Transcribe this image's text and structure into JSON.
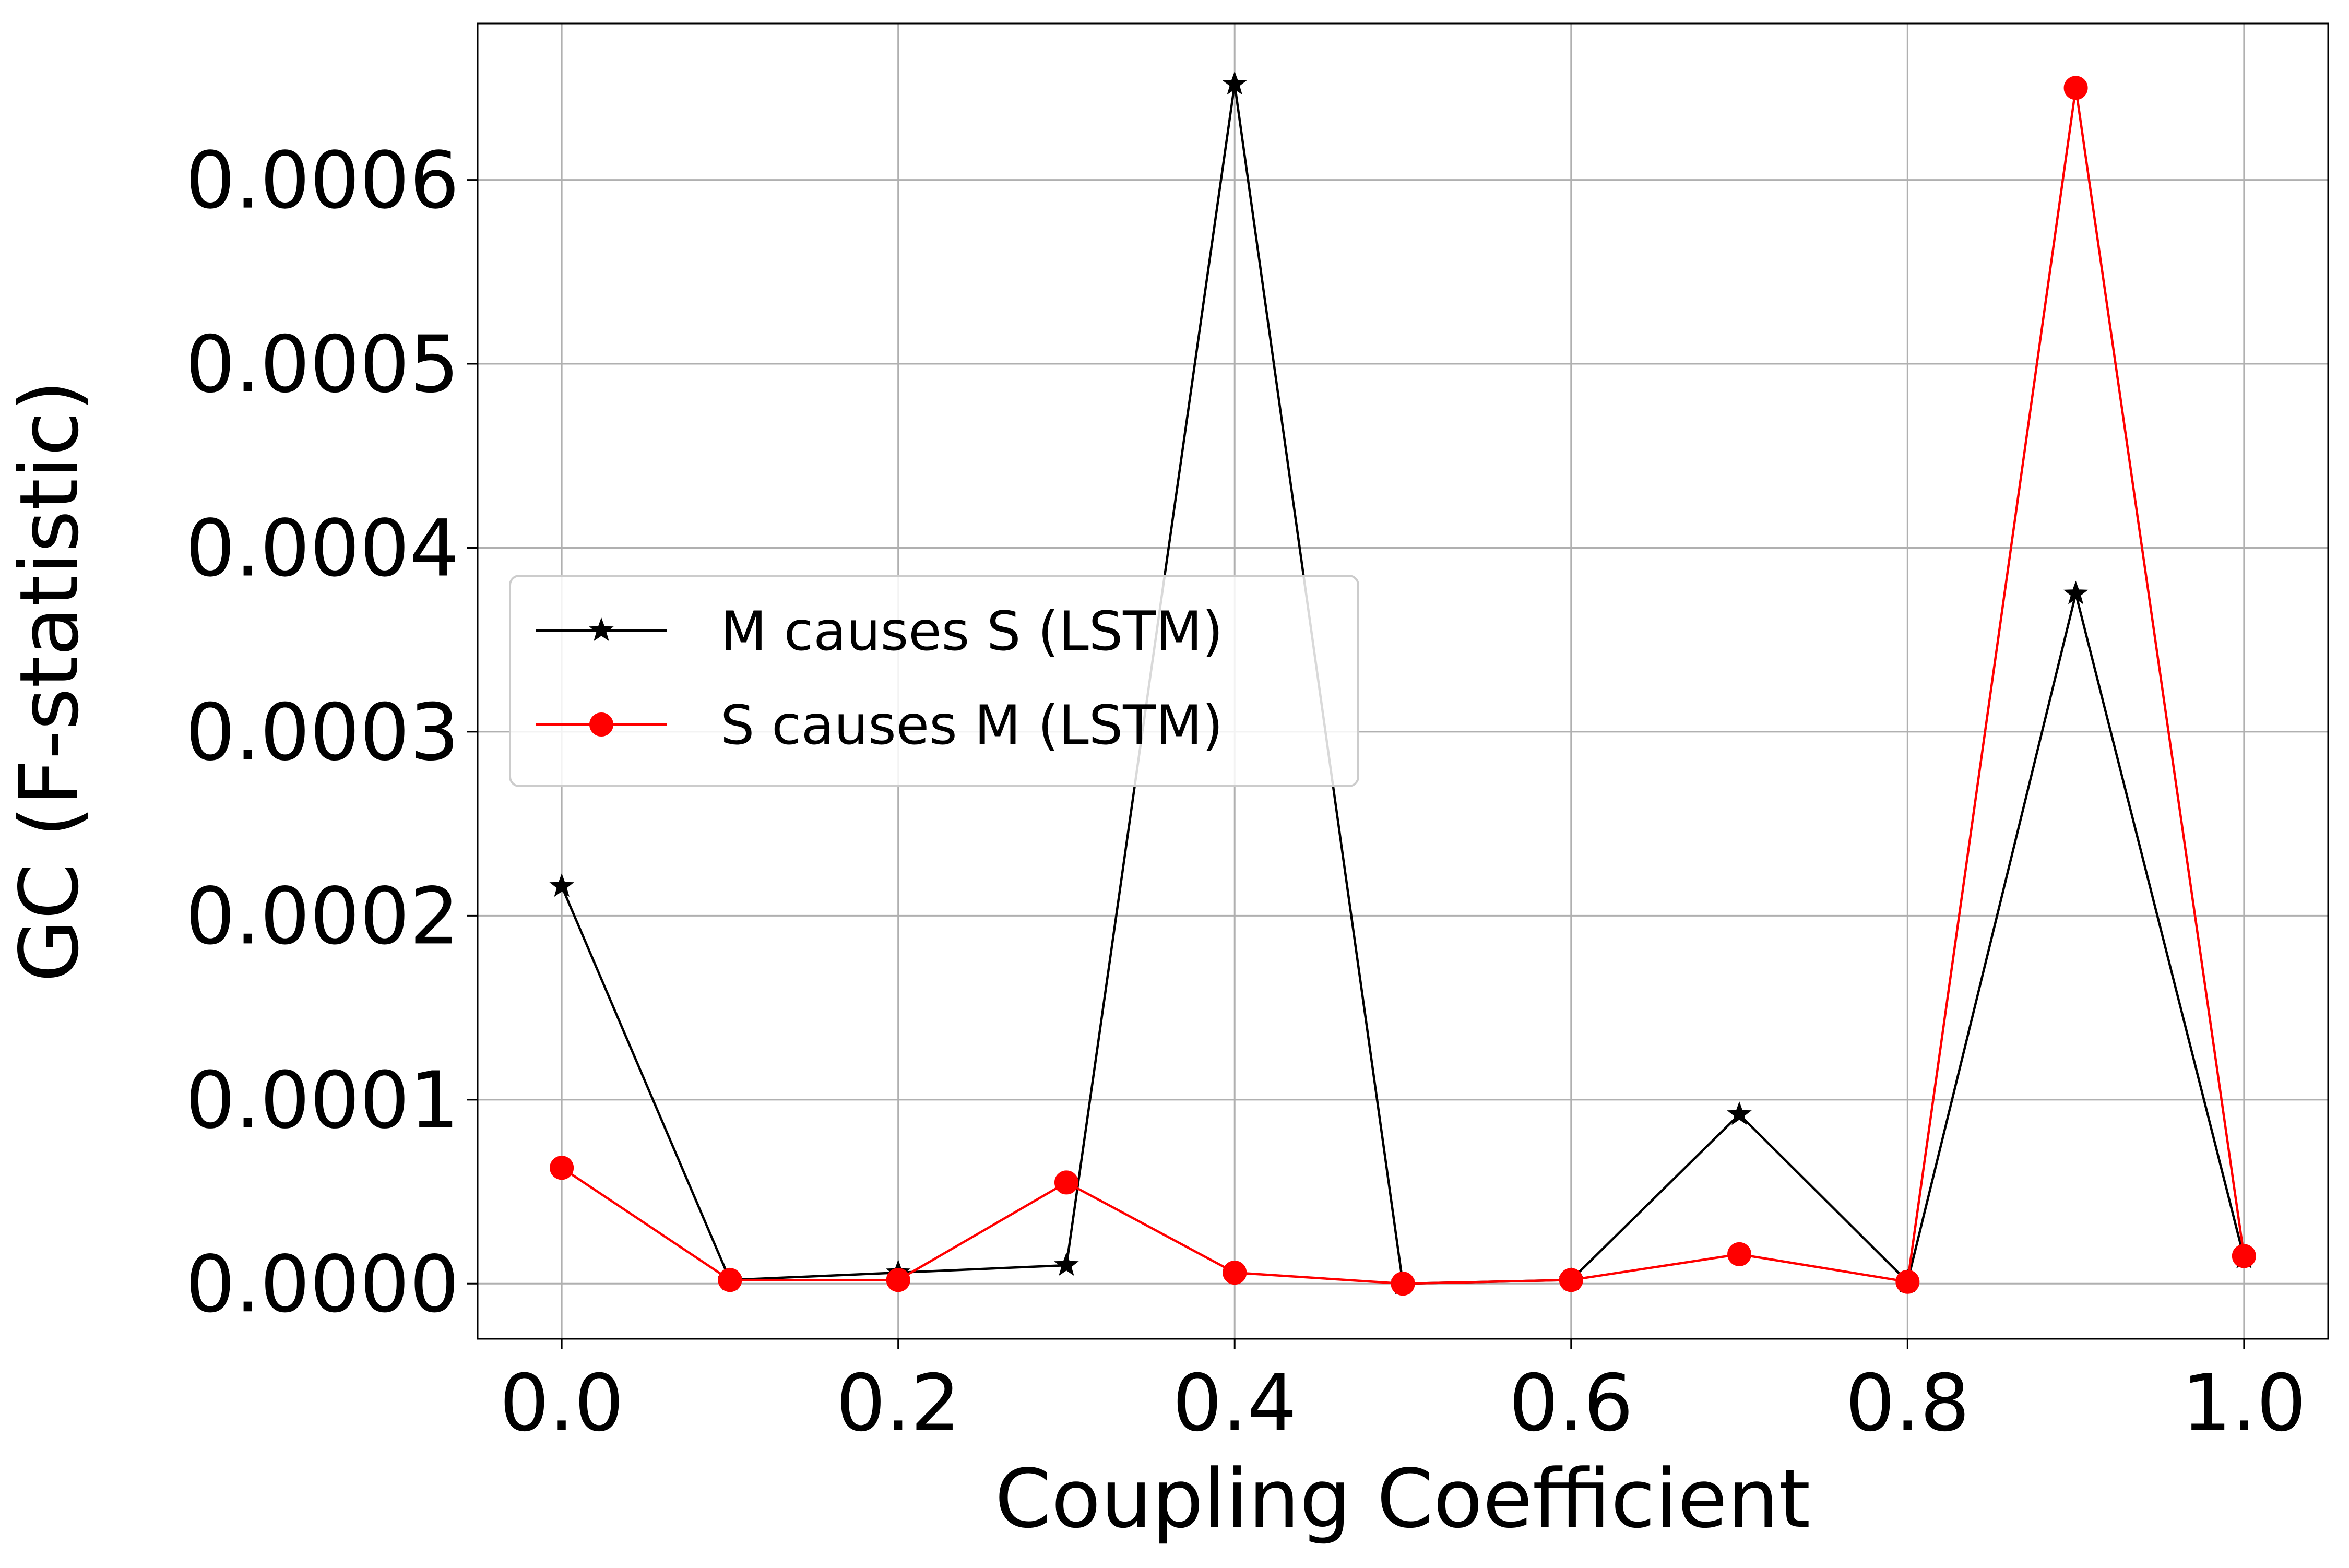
{
  "chart_data": {
    "type": "line",
    "title": "",
    "xlabel": "Coupling Coefficient",
    "ylabel": "GC (F-statistic)",
    "x": [
      0.0,
      0.1,
      0.2,
      0.3,
      0.4,
      0.5,
      0.6,
      0.7,
      0.8,
      0.9,
      1.0
    ],
    "xlim": [
      -0.05,
      1.05
    ],
    "ylim": [
      -3e-05,
      0.000685
    ],
    "xticks": [
      0.0,
      0.2,
      0.4,
      0.6,
      0.8,
      1.0
    ],
    "xtick_labels": [
      "0.0",
      "0.2",
      "0.4",
      "0.6",
      "0.8",
      "1.0"
    ],
    "yticks": [
      0.0,
      0.0001,
      0.0002,
      0.0003,
      0.0004,
      0.0005,
      0.0006
    ],
    "ytick_labels": [
      "0.0000",
      "0.0001",
      "0.0002",
      "0.0003",
      "0.0004",
      "0.0005",
      "0.0006"
    ],
    "grid": true,
    "legend_position": "center-left",
    "series": [
      {
        "name": "M causes S (LSTM)",
        "color": "#000000",
        "marker": "star",
        "values": [
          0.000216,
          2e-06,
          6e-06,
          1e-05,
          0.000652,
          0.0,
          2e-06,
          9.2e-05,
          1e-06,
          0.000375,
          1.4e-05
        ]
      },
      {
        "name": "S causes M (LSTM)",
        "color": "#ff0000",
        "marker": "circle",
        "values": [
          6.3e-05,
          2e-06,
          2e-06,
          5.5e-05,
          6e-06,
          0.0,
          2e-06,
          1.6e-05,
          1e-06,
          0.00065,
          1.5e-05
        ]
      }
    ]
  }
}
